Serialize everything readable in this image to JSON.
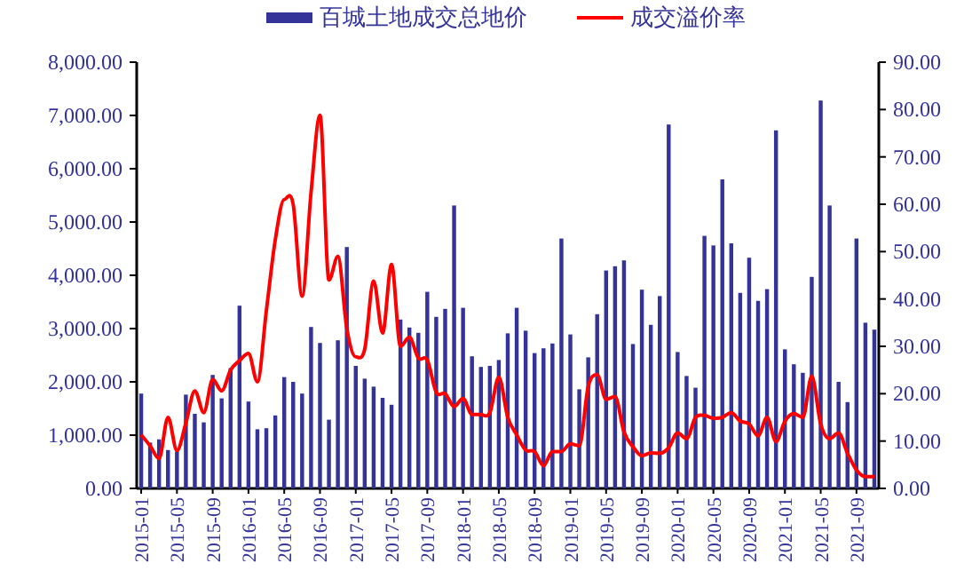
{
  "chart_data": {
    "type": "bar",
    "categories": [
      "2015-01",
      null,
      null,
      null,
      "2015-05",
      null,
      null,
      null,
      "2015-09",
      null,
      null,
      null,
      "2016-01",
      null,
      null,
      null,
      "2016-05",
      null,
      null,
      null,
      "2016-09",
      null,
      null,
      null,
      "2017-01",
      null,
      null,
      null,
      "2017-05",
      null,
      null,
      null,
      "2017-09",
      null,
      null,
      null,
      "2018-01",
      null,
      null,
      null,
      "2018-05",
      null,
      null,
      null,
      "2018-09",
      null,
      null,
      null,
      "2019-01",
      null,
      null,
      null,
      "2019-05",
      null,
      null,
      null,
      "2019-09",
      null,
      null,
      null,
      "2020-01",
      null,
      null,
      null,
      "2020-05",
      null,
      null,
      null,
      "2020-09",
      null,
      null,
      null,
      "2021-01",
      null,
      null,
      null,
      "2021-05",
      null,
      null,
      null,
      "2021-09",
      null,
      null
    ],
    "series": [
      {
        "name": "百城土地成交总地价",
        "color": "#333399",
        "values": [
          1780,
          860,
          920,
          720,
          690,
          1760,
          1400,
          1240,
          2130,
          1690,
          2260,
          3430,
          1630,
          1110,
          1130,
          1370,
          2090,
          2000,
          1780,
          3030,
          2730,
          1290,
          2780,
          4530,
          2300,
          2060,
          1910,
          1700,
          1570,
          3170,
          3020,
          2920,
          3690,
          3220,
          3370,
          5310,
          3390,
          2480,
          2280,
          2300,
          2410,
          2910,
          3390,
          2960,
          2540,
          2630,
          2720,
          4690,
          2890,
          1860,
          2460,
          3270,
          4090,
          4170,
          4280,
          2710,
          3730,
          3070,
          3610,
          6830,
          2560,
          2110,
          1890,
          4740,
          4560,
          5800,
          4600,
          3670,
          4330,
          3520,
          3740,
          6720,
          2610,
          2330,
          2170,
          3970,
          7280,
          5310,
          2000,
          1620,
          4690,
          3110,
          2980
        ]
      },
      {
        "name": "成交溢价率",
        "type": "line",
        "axis": "y2",
        "color": "#ff0000",
        "values": [
          11.3,
          9,
          6.3,
          15,
          8,
          13.8,
          20.6,
          16,
          23,
          20.6,
          25,
          27,
          28.5,
          22.5,
          37.5,
          52.5,
          61,
          60,
          40.6,
          62.5,
          78.8,
          44,
          49,
          33.8,
          27.8,
          29.4,
          43.8,
          32.8,
          47.3,
          30,
          31.9,
          27.5,
          27.1,
          20.3,
          20,
          17.3,
          19,
          15.6,
          15.6,
          16,
          23.5,
          15,
          11.3,
          8.1,
          7.8,
          4.8,
          7.8,
          7.8,
          9.4,
          9,
          21.5,
          24,
          18.8,
          19.4,
          11.9,
          8.8,
          6.9,
          7.5,
          7.4,
          8.6,
          11.7,
          10.5,
          15,
          15.4,
          14.8,
          15,
          16,
          14.2,
          13.6,
          11.1,
          15,
          9.9,
          14.2,
          15.8,
          15,
          23.7,
          13.6,
          10.5,
          11.7,
          7.4,
          3.9,
          2.5,
          2.5
        ]
      }
    ],
    "ylim": [
      0,
      8000
    ],
    "yticks": [
      {
        "value": 0,
        "label": "0.00"
      },
      {
        "value": 1000,
        "label": "1,000.00"
      },
      {
        "value": 2000,
        "label": "2,000.00"
      },
      {
        "value": 3000,
        "label": "3,000.00"
      },
      {
        "value": 4000,
        "label": "4,000.00"
      },
      {
        "value": 5000,
        "label": "5,000.00"
      },
      {
        "value": 6000,
        "label": "6,000.00"
      },
      {
        "value": 7000,
        "label": "7,000.00"
      },
      {
        "value": 8000,
        "label": "8,000.00"
      }
    ],
    "y2lim": [
      0,
      90
    ],
    "y2ticks": [
      {
        "value": 0,
        "label": "0.00"
      },
      {
        "value": 10,
        "label": "10.00"
      },
      {
        "value": 20,
        "label": "20.00"
      },
      {
        "value": 30,
        "label": "30.00"
      },
      {
        "value": 40,
        "label": "40.00"
      },
      {
        "value": 50,
        "label": "50.00"
      },
      {
        "value": 60,
        "label": "60.00"
      },
      {
        "value": 70,
        "label": "70.00"
      },
      {
        "value": 80,
        "label": "80.00"
      },
      {
        "value": 90,
        "label": "90.00"
      }
    ],
    "legend": "top"
  }
}
